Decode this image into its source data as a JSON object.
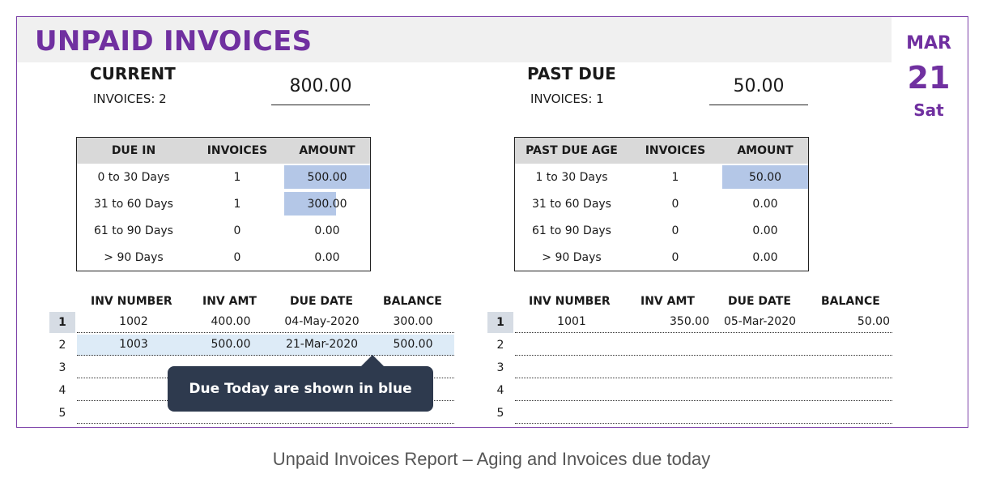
{
  "report": {
    "title": "UNPAID INVOICES",
    "date": {
      "month": "MAR",
      "day": "21",
      "weekday": "Sat"
    }
  },
  "current": {
    "heading": "CURRENT",
    "invoices_label": "INVOICES: 2",
    "total": "800.00",
    "aging_headers": [
      "DUE IN",
      "INVOICES",
      "AMOUNT"
    ],
    "aging_rows": [
      {
        "bucket": "0 to 30 Days",
        "count": "1",
        "amount": "500.00",
        "bar_fraction": 1.0
      },
      {
        "bucket": "31 to 60 Days",
        "count": "1",
        "amount": "300.00",
        "bar_fraction": 0.6
      },
      {
        "bucket": "61 to 90 Days",
        "count": "0",
        "amount": "0.00",
        "bar_fraction": 0
      },
      {
        "bucket": "> 90 Days",
        "count": "0",
        "amount": "0.00",
        "bar_fraction": 0
      }
    ],
    "list_headers": [
      "INV NUMBER",
      "INV AMT",
      "DUE DATE",
      "BALANCE"
    ],
    "rows": [
      {
        "num": "1",
        "inv": "1002",
        "amt": "400.00",
        "due": "04-May-2020",
        "bal": "300.00"
      },
      {
        "num": "2",
        "inv": "1003",
        "amt": "500.00",
        "due": "21-Mar-2020",
        "bal": "500.00"
      },
      {
        "num": "3",
        "inv": "",
        "amt": "",
        "due": "",
        "bal": ""
      },
      {
        "num": "4",
        "inv": "",
        "amt": "",
        "due": "",
        "bal": ""
      },
      {
        "num": "5",
        "inv": "",
        "amt": "",
        "due": "",
        "bal": ""
      }
    ]
  },
  "past_due": {
    "heading": "PAST DUE",
    "invoices_label": "INVOICES: 1",
    "total": "50.00",
    "aging_headers": [
      "PAST DUE AGE",
      "INVOICES",
      "AMOUNT"
    ],
    "aging_rows": [
      {
        "bucket": "1 to 30 Days",
        "count": "1",
        "amount": "50.00",
        "bar_fraction": 1.0
      },
      {
        "bucket": "31 to 60 Days",
        "count": "0",
        "amount": "0.00",
        "bar_fraction": 0
      },
      {
        "bucket": "61 to 90 Days",
        "count": "0",
        "amount": "0.00",
        "bar_fraction": 0
      },
      {
        "bucket": "> 90 Days",
        "count": "0",
        "amount": "0.00",
        "bar_fraction": 0
      }
    ],
    "list_headers": [
      "INV NUMBER",
      "INV AMT",
      "DUE DATE",
      "BALANCE"
    ],
    "rows": [
      {
        "num": "1",
        "inv": "1001",
        "amt": "350.00",
        "due": "05-Mar-2020",
        "bal": "50.00"
      },
      {
        "num": "2",
        "inv": "",
        "amt": "",
        "due": "",
        "bal": ""
      },
      {
        "num": "3",
        "inv": "",
        "amt": "",
        "due": "",
        "bal": ""
      },
      {
        "num": "4",
        "inv": "",
        "amt": "",
        "due": "",
        "bal": ""
      },
      {
        "num": "5",
        "inv": "",
        "amt": "",
        "due": "",
        "bal": ""
      }
    ]
  },
  "tooltip": "Due Today are shown in blue",
  "caption": "Unpaid Invoices Report – Aging and Invoices due today",
  "colors": {
    "accent": "#7030a0",
    "bar": "#b4c7e7",
    "today_row": "#ddebf7",
    "tooltip_bg": "#2e3a4e"
  }
}
